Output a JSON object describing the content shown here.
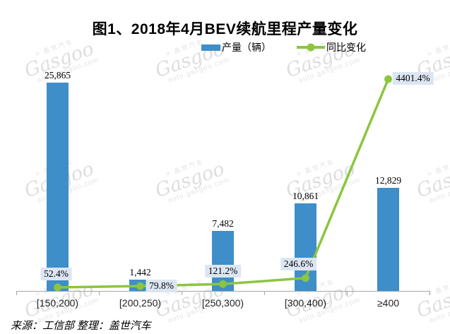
{
  "title": "图1、2018年4月BEV续航里程产量变化",
  "source_note": "来源：工信部 整理：盖世汽车",
  "watermark": {
    "cn": "盖世汽车",
    "brand": "Gasgoo",
    "url": "auto.gasgoo.com"
  },
  "colors": {
    "bar": "#3e8ec9",
    "line": "#8cc540",
    "pct_label_bg": "#dce6f2",
    "axis": "#a6a6a6"
  },
  "chart_data": {
    "type": "bar",
    "subtype": "bar+line combo",
    "title": "图1、2018年4月BEV续航里程产量变化",
    "categories": [
      "[150,200)",
      "[200,250)",
      "[250,300)",
      "[300,400)",
      "≥400"
    ],
    "series": [
      {
        "name": "产量（辆）",
        "type": "bar",
        "color": "#3e8ec9",
        "values": [
          25865,
          1442,
          7482,
          10861,
          12829
        ],
        "labels": [
          "25,865",
          "1,442",
          "7,482",
          "10,861",
          "12,829"
        ]
      },
      {
        "name": "同比变化",
        "type": "line",
        "color": "#8cc540",
        "values": [
          52.4,
          79.8,
          121.2,
          246.6,
          4401.4
        ],
        "labels": [
          "52.4%",
          "79.8%",
          "121.2%",
          "246.6%",
          "4401.4%"
        ]
      }
    ],
    "xlabel": "",
    "ylabel": "",
    "y_axis": {
      "visible": false,
      "range": [
        0,
        29000
      ]
    },
    "y2_axis": {
      "visible": false,
      "range": [
        0,
        4800
      ]
    },
    "grid": false,
    "legend_position": "top"
  }
}
